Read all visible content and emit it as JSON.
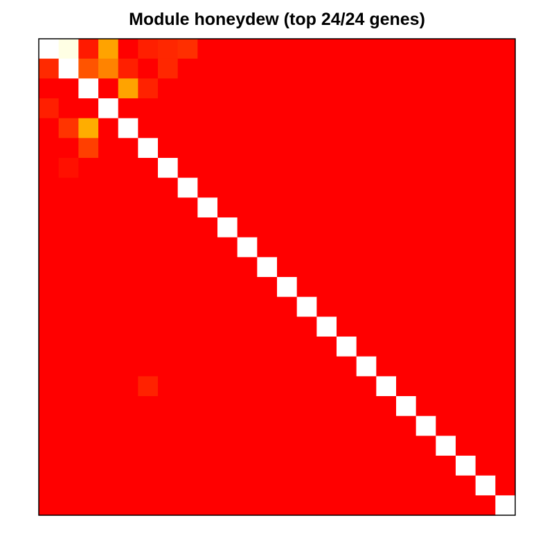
{
  "title": "Module honeydew (top 24/24 genes)",
  "chart_data": {
    "type": "heatmap",
    "title": "Module honeydew (top 24/24 genes)",
    "n_rows": 24,
    "n_cols": 24,
    "value_range": [
      0,
      1
    ],
    "colormap": "heat (red to orange to yellow to white)",
    "colors": {
      "low": "#FF0000",
      "mid": "#FFA500",
      "high": "#FFFFFF",
      "border": "#000000"
    },
    "diagonal_value": 1,
    "background_value": 0,
    "cells": [
      {
        "row": 1,
        "col": 2,
        "value": 0.98
      },
      {
        "row": 1,
        "col": 3,
        "value": 0.1
      },
      {
        "row": 1,
        "col": 4,
        "value": 0.62
      },
      {
        "row": 1,
        "col": 6,
        "value": 0.12
      },
      {
        "row": 1,
        "col": 7,
        "value": 0.15
      },
      {
        "row": 1,
        "col": 8,
        "value": 0.18
      },
      {
        "row": 2,
        "col": 1,
        "value": 0.16
      },
      {
        "row": 2,
        "col": 3,
        "value": 0.32
      },
      {
        "row": 2,
        "col": 4,
        "value": 0.5
      },
      {
        "row": 2,
        "col": 5,
        "value": 0.12
      },
      {
        "row": 2,
        "col": 7,
        "value": 0.15
      },
      {
        "row": 3,
        "col": 5,
        "value": 0.62
      },
      {
        "row": 3,
        "col": 6,
        "value": 0.13
      },
      {
        "row": 4,
        "col": 1,
        "value": 0.12
      },
      {
        "row": 5,
        "col": 2,
        "value": 0.2
      },
      {
        "row": 5,
        "col": 3,
        "value": 0.66
      },
      {
        "row": 6,
        "col": 3,
        "value": 0.24
      },
      {
        "row": 7,
        "col": 2,
        "value": 0.06
      },
      {
        "row": 18,
        "col": 6,
        "value": 0.13
      }
    ]
  }
}
